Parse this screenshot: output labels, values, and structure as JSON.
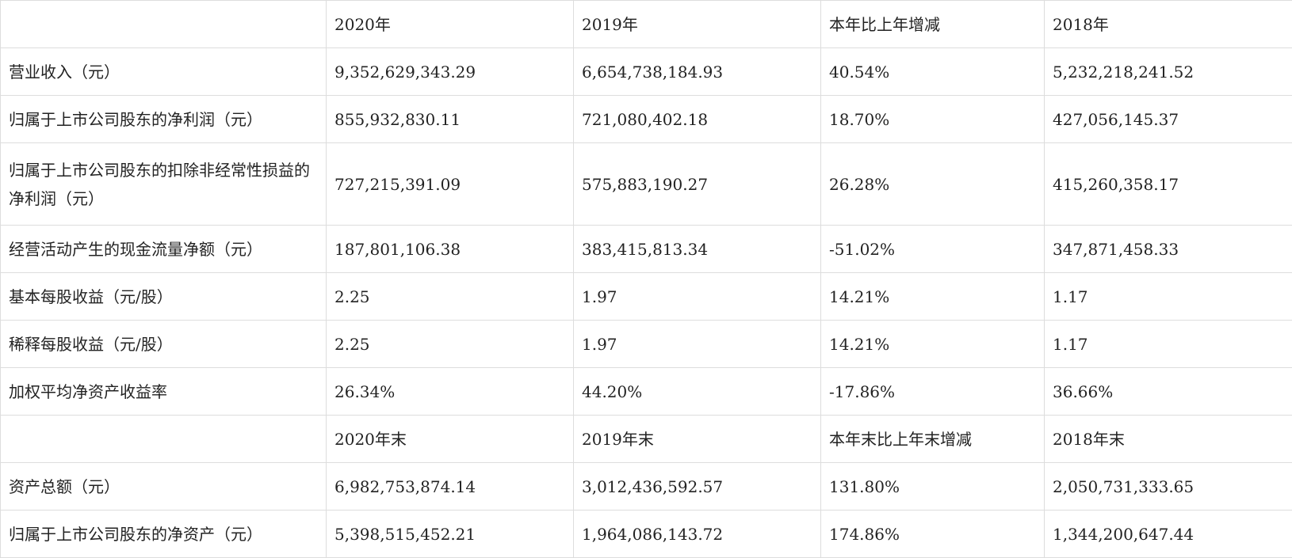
{
  "table": {
    "header1": [
      "",
      "2020年",
      "2019年",
      "本年比上年增减",
      "2018年"
    ],
    "rows1": [
      {
        "label": "营业收入（元）",
        "values": [
          "9,352,629,343.29",
          "6,654,738,184.93",
          "40.54%",
          "5,232,218,241.52"
        ]
      },
      {
        "label": "归属于上市公司股东的净利润（元）",
        "values": [
          "855,932,830.11",
          "721,080,402.18",
          "18.70%",
          "427,056,145.37"
        ]
      },
      {
        "label": "归属于上市公司股东的扣除非经常性损益的净利润（元）",
        "values": [
          "727,215,391.09",
          "575,883,190.27",
          "26.28%",
          "415,260,358.17"
        ]
      },
      {
        "label": "经营活动产生的现金流量净额（元）",
        "values": [
          "187,801,106.38",
          "383,415,813.34",
          "-51.02%",
          "347,871,458.33"
        ]
      },
      {
        "label": "基本每股收益（元/股）",
        "values": [
          "2.25",
          "1.97",
          "14.21%",
          "1.17"
        ]
      },
      {
        "label": "稀释每股收益（元/股）",
        "values": [
          "2.25",
          "1.97",
          "14.21%",
          "1.17"
        ]
      },
      {
        "label": "加权平均净资产收益率",
        "values": [
          "26.34%",
          "44.20%",
          "-17.86%",
          "36.66%"
        ]
      }
    ],
    "header2": [
      "",
      "2020年末",
      "2019年末",
      "本年末比上年末增减",
      "2018年末"
    ],
    "rows2": [
      {
        "label": "资产总额（元）",
        "values": [
          "6,982,753,874.14",
          "3,012,436,592.57",
          "131.80%",
          "2,050,731,333.65"
        ]
      },
      {
        "label": "归属于上市公司股东的净资产（元）",
        "values": [
          "5,398,515,452.21",
          "1,964,086,143.72",
          "174.86%",
          "1,344,200,647.44"
        ]
      }
    ]
  }
}
